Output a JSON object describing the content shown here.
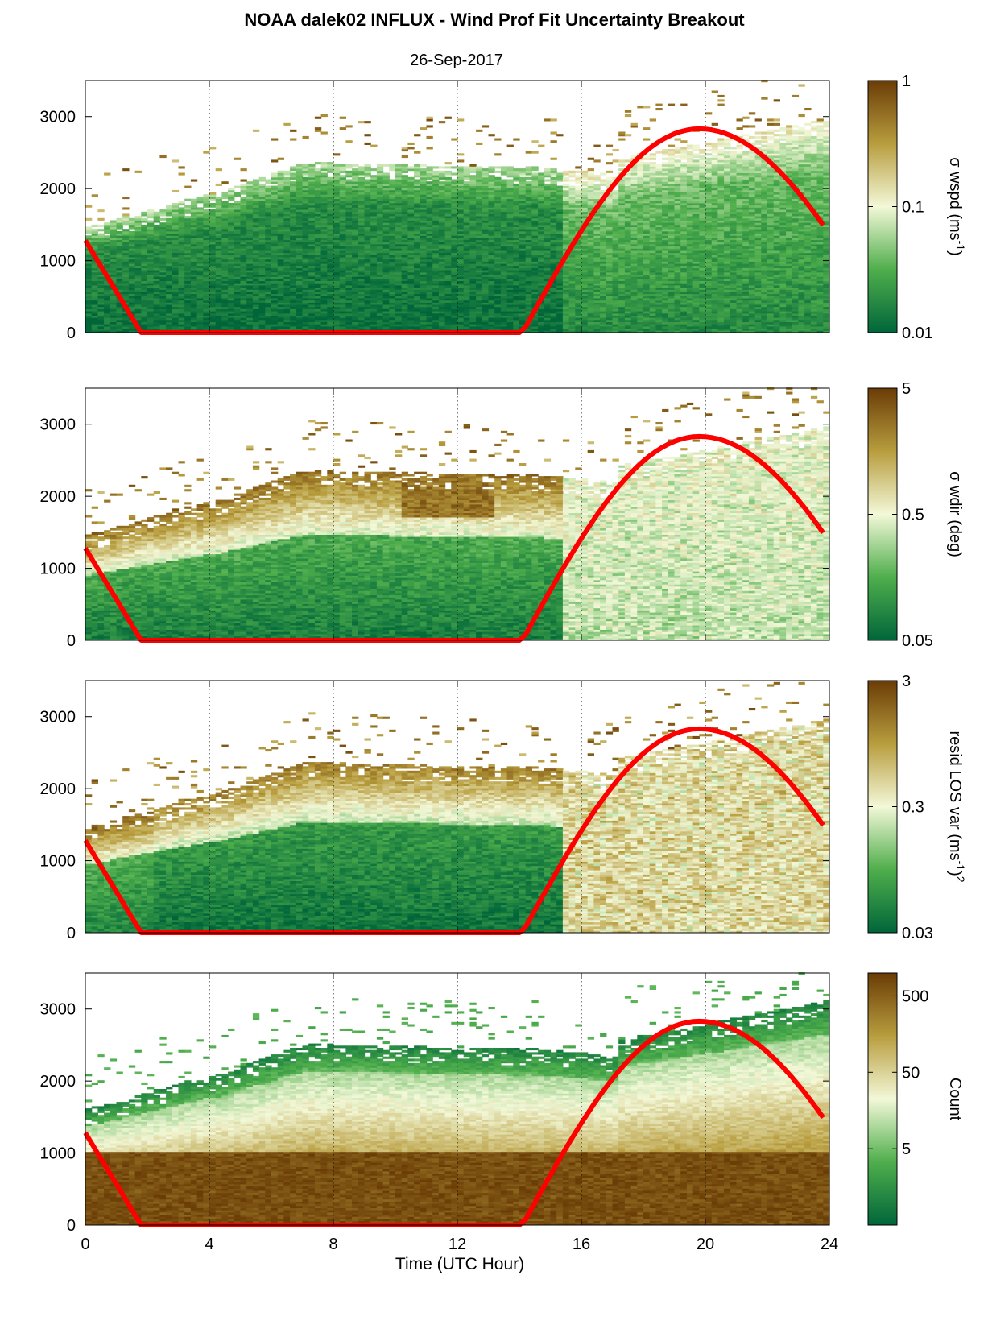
{
  "figure": {
    "title": "NOAA dalek02 INFLUX - Wind Prof Fit Uncertainty Breakout",
    "subtitle": "26-Sep-2017",
    "xlabel": "Time (UTC Hour)"
  },
  "colors": {
    "low": "#00663a",
    "mid_low": "#4fae4c",
    "mid": "#f3f8d8",
    "mid_high": "#b89d3e",
    "high": "#6a3c06",
    "curve": "#ff0000"
  },
  "chart_data": [
    {
      "type": "heatmap",
      "name": "panel-wspd",
      "xlim": [
        0,
        24
      ],
      "ylim": [
        0,
        3500
      ],
      "xticks": [
        "0",
        "4",
        "8",
        "12",
        "16",
        "20",
        "24"
      ],
      "yticks": [
        "0",
        "1000",
        "2000",
        "3000"
      ],
      "grid": "vertical dotted at 4, 8, 12, 16, 20",
      "colorbar": {
        "label": "σ wspd (ms-1)",
        "label_main": "σ wspd (ms",
        "label_sup": "-1",
        "label_end": ")",
        "scale": "log",
        "ticks": [
          "0.01",
          "0.1",
          "1"
        ]
      },
      "curve": {
        "color": "#ff0000",
        "x": [
          0,
          1.8,
          14.1,
          16,
          18,
          20,
          22,
          23.8
        ],
        "y": [
          1280,
          0,
          0,
          1520,
          2480,
          2830,
          2470,
          1480
        ]
      }
    },
    {
      "type": "heatmap",
      "name": "panel-wdir",
      "xlim": [
        0,
        24
      ],
      "ylim": [
        0,
        3500
      ],
      "xticks": [
        "0",
        "4",
        "8",
        "12",
        "16",
        "20",
        "24"
      ],
      "yticks": [
        "0",
        "1000",
        "2000",
        "3000"
      ],
      "grid": "vertical dotted at 4, 8, 12, 16, 20",
      "colorbar": {
        "label": "σ wdir (deg)",
        "label_main": "σ wdir (deg)",
        "label_sup": "",
        "label_end": "",
        "scale": "log",
        "ticks": [
          "0.05",
          "0.5",
          "5"
        ]
      },
      "curve": {
        "color": "#ff0000",
        "x": [
          0,
          1.8,
          14.1,
          16,
          18,
          20,
          22,
          23.8
        ],
        "y": [
          1280,
          0,
          0,
          1520,
          2480,
          2830,
          2470,
          1480
        ]
      }
    },
    {
      "type": "heatmap",
      "name": "panel-resid",
      "xlim": [
        0,
        24
      ],
      "ylim": [
        0,
        3500
      ],
      "xticks": [
        "0",
        "4",
        "8",
        "12",
        "16",
        "20",
        "24"
      ],
      "yticks": [
        "0",
        "1000",
        "2000",
        "3000"
      ],
      "grid": "vertical dotted at 4, 8, 12, 16, 20",
      "colorbar": {
        "label": "resid LOS var (ms-1)2",
        "label_main": "resid LOS var (ms",
        "label_sup": "-1",
        "label_end": ")",
        "label_sup2": "2",
        "scale": "log",
        "ticks": [
          "0.03",
          "0.3",
          "3"
        ]
      },
      "curve": {
        "color": "#ff0000",
        "x": [
          0,
          1.8,
          14.1,
          16,
          18,
          20,
          22,
          23.8
        ],
        "y": [
          1280,
          0,
          0,
          1520,
          2480,
          2830,
          2470,
          1480
        ]
      }
    },
    {
      "type": "heatmap",
      "name": "panel-count",
      "xlim": [
        0,
        24
      ],
      "ylim": [
        0,
        3500
      ],
      "xticks": [
        "0",
        "4",
        "8",
        "12",
        "16",
        "20",
        "24"
      ],
      "yticks": [
        "0",
        "1000",
        "2000",
        "3000"
      ],
      "grid": "vertical dotted at 4, 8, 12, 16, 20",
      "colorbar": {
        "label": "Count",
        "label_main": "Count",
        "label_sup": "",
        "label_end": "",
        "scale": "log",
        "ticks": [
          "5",
          "50",
          "500"
        ]
      },
      "curve": {
        "color": "#ff0000",
        "x": [
          0,
          1.8,
          14.1,
          16,
          18,
          20,
          22,
          23.8
        ],
        "y": [
          1280,
          0,
          0,
          1520,
          2480,
          2830,
          2470,
          1480
        ]
      }
    }
  ]
}
